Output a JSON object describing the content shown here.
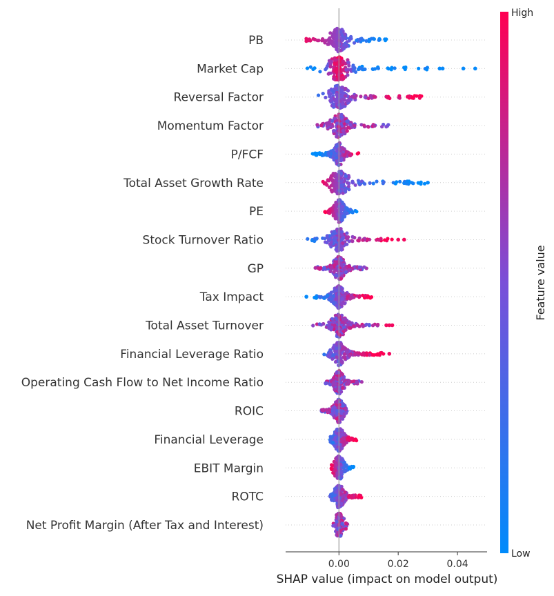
{
  "chart_data": {
    "type": "scatter",
    "subtype": "shap-beeswarm",
    "title": "",
    "xlabel": "SHAP value (impact on model output)",
    "ylabel": "",
    "xlim": [
      -0.018,
      0.05
    ],
    "x_ticks": [
      0.0,
      0.02,
      0.04
    ],
    "x_tick_labels": [
      "0.00",
      "0.02",
      "0.04"
    ],
    "grid": false,
    "colorbar": {
      "label": "Feature value",
      "high_label": "High",
      "low_label": "Low",
      "colors": [
        "#008bfb",
        "#7a4fd8",
        "#ff0052"
      ]
    },
    "features": [
      {
        "name": "PB",
        "min": -0.015,
        "max": 0.016,
        "high_side": "negative",
        "outliers": []
      },
      {
        "name": "Market Cap",
        "min": -0.011,
        "max": 0.03,
        "high_side": "near-zero",
        "outliers": [
          0.034,
          0.035,
          0.042,
          0.046
        ]
      },
      {
        "name": "Reversal Factor",
        "min": -0.007,
        "max": 0.029,
        "high_side": "positive",
        "outliers": []
      },
      {
        "name": "Momentum Factor",
        "min": -0.009,
        "max": 0.017,
        "high_side": "mixed",
        "outliers": []
      },
      {
        "name": "P/FCF",
        "min": -0.009,
        "max": 0.007,
        "high_side": "positive",
        "outliers": []
      },
      {
        "name": "Total Asset Growth Rate",
        "min": -0.007,
        "max": 0.029,
        "high_side": "negative",
        "outliers": [
          0.03
        ]
      },
      {
        "name": "PE",
        "min": -0.005,
        "max": 0.006,
        "high_side": "negative",
        "outliers": []
      },
      {
        "name": "Stock Turnover Ratio",
        "min": -0.011,
        "max": 0.018,
        "high_side": "positive",
        "outliers": [
          0.02,
          0.022
        ]
      },
      {
        "name": "GP",
        "min": -0.008,
        "max": 0.012,
        "high_side": "mixed",
        "outliers": []
      },
      {
        "name": "Tax Impact",
        "min": -0.009,
        "max": 0.011,
        "high_side": "positive",
        "outliers": [
          -0.011
        ]
      },
      {
        "name": "Total Asset Turnover",
        "min": -0.009,
        "max": 0.014,
        "high_side": "mixed",
        "outliers": [
          0.016,
          0.017,
          0.018
        ]
      },
      {
        "name": "Financial Leverage Ratio",
        "min": -0.006,
        "max": 0.016,
        "high_side": "positive",
        "outliers": [
          0.017
        ]
      },
      {
        "name": "Operating Cash Flow to Net Income Ratio",
        "min": -0.005,
        "max": 0.008,
        "high_side": "mixed",
        "outliers": []
      },
      {
        "name": "ROIC",
        "min": -0.006,
        "max": 0.003,
        "high_side": "mixed",
        "outliers": []
      },
      {
        "name": "Financial Leverage",
        "min": -0.004,
        "max": 0.006,
        "high_side": "positive",
        "outliers": []
      },
      {
        "name": "EBIT Margin",
        "min": -0.003,
        "max": 0.005,
        "high_side": "negative",
        "outliers": []
      },
      {
        "name": "ROTC",
        "min": -0.003,
        "max": 0.008,
        "high_side": "positive",
        "outliers": []
      },
      {
        "name": "Net Profit Margin (After Tax and Interest)",
        "min": -0.002,
        "max": 0.003,
        "high_side": "mixed",
        "outliers": []
      }
    ]
  }
}
